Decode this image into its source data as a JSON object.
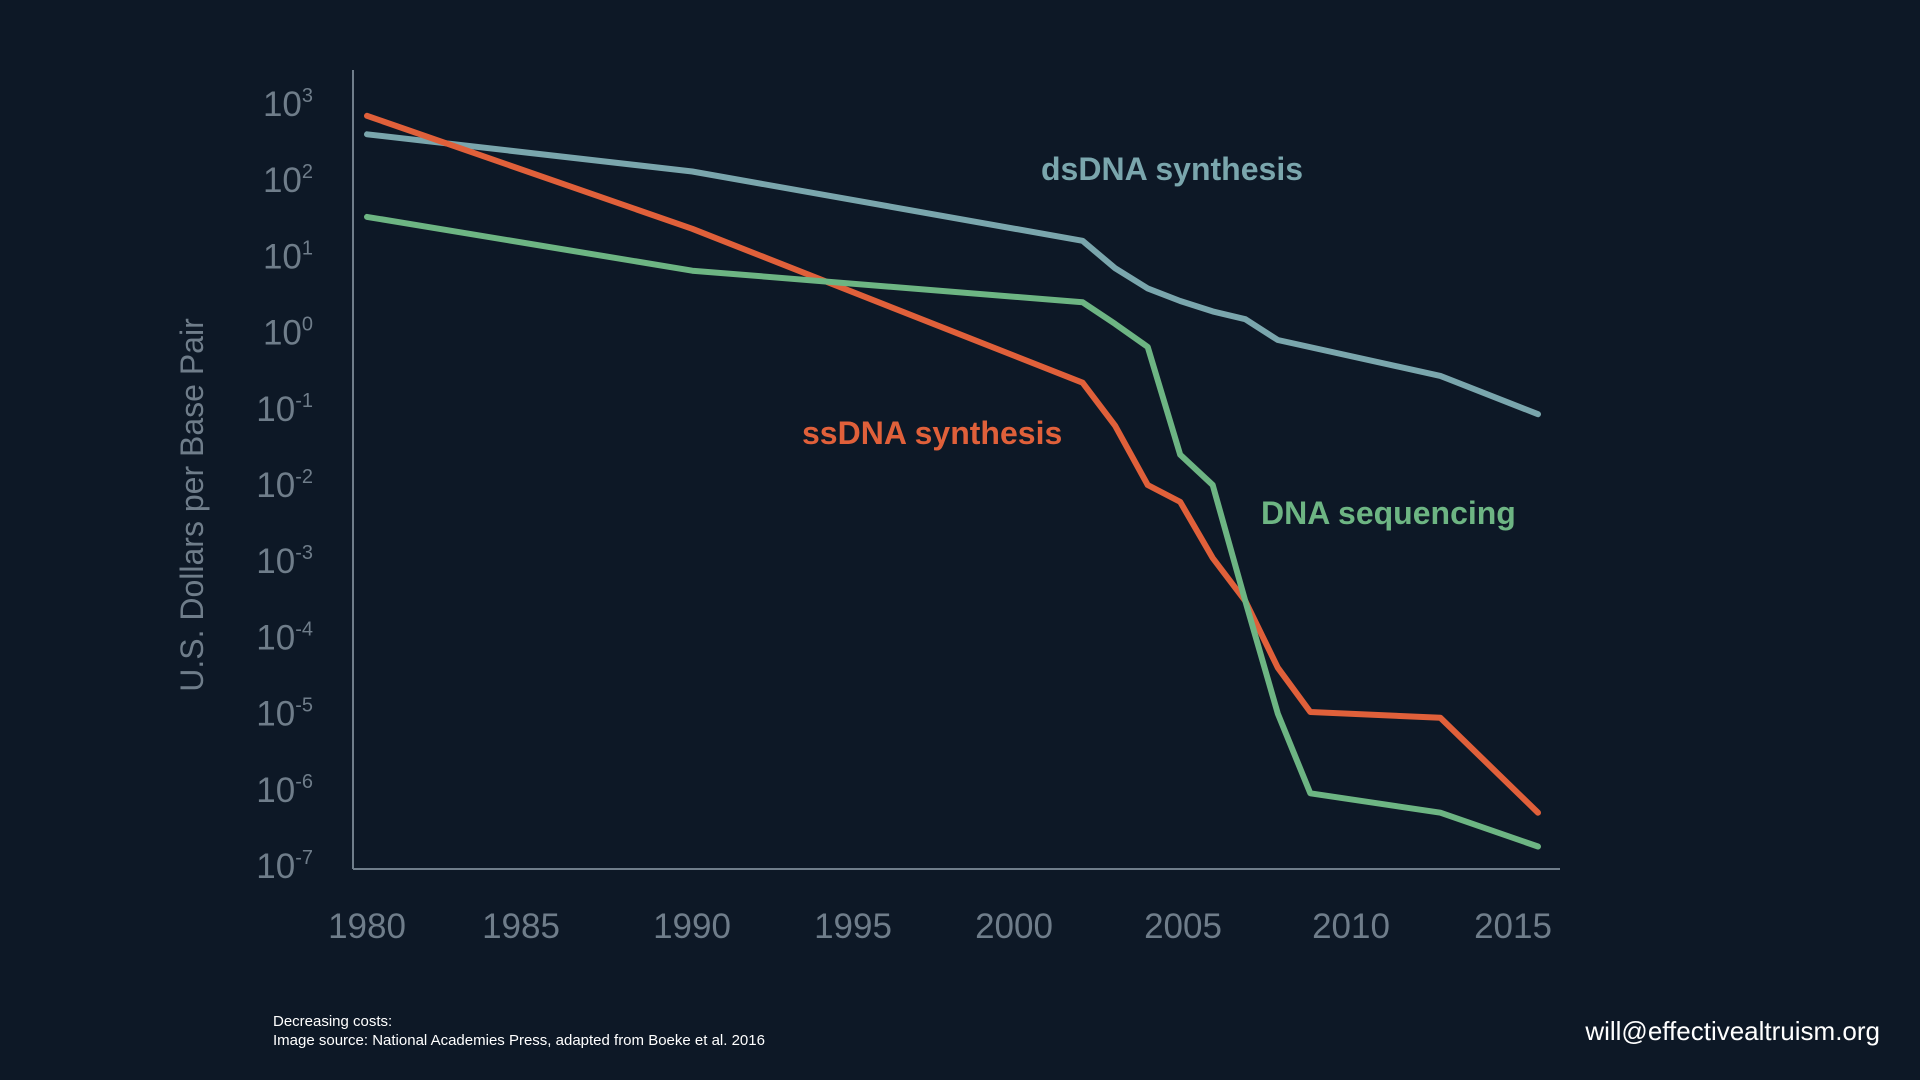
{
  "chart_data": {
    "type": "line",
    "title": "",
    "xlabel": "",
    "ylabel": "U.S. Dollars per Base Pair",
    "yscale": "log",
    "xlim": [
      1980,
      2016
    ],
    "ylim_exponent": [
      -7,
      3
    ],
    "x_ticks": [
      "1980",
      "1985",
      "1990",
      "1995",
      "2000",
      "2005",
      "2010",
      "2015"
    ],
    "y_ticks": [
      {
        "base": "10",
        "exp": "-7",
        "value": 1e-07
      },
      {
        "base": "10",
        "exp": "-6",
        "value": 1e-06
      },
      {
        "base": "10",
        "exp": "-5",
        "value": 1e-05
      },
      {
        "base": "10",
        "exp": "-4",
        "value": 0.0001
      },
      {
        "base": "10",
        "exp": "-3",
        "value": 0.001
      },
      {
        "base": "10",
        "exp": "-2",
        "value": 0.01
      },
      {
        "base": "10",
        "exp": "-1",
        "value": 0.1
      },
      {
        "base": "10",
        "exp": "0",
        "value": 1
      },
      {
        "base": "10",
        "exp": "1",
        "value": 10
      },
      {
        "base": "10",
        "exp": "2",
        "value": 100
      },
      {
        "base": "10",
        "exp": "3",
        "value": 1000
      }
    ],
    "grid": false,
    "legend": "direct labels",
    "series": [
      {
        "name": "dsDNA synthesis",
        "color": "#7aa6ad",
        "points": [
          [
            1980,
            400
          ],
          [
            1990,
            130
          ],
          [
            2002,
            16
          ],
          [
            2003,
            7
          ],
          [
            2004,
            3.8
          ],
          [
            2005,
            2.6
          ],
          [
            2006,
            1.9
          ],
          [
            2007,
            1.5
          ],
          [
            2008,
            0.8
          ],
          [
            2013,
            0.27
          ],
          [
            2016,
            0.085
          ]
        ]
      },
      {
        "name": "ssDNA synthesis",
        "color": "#e0603a",
        "points": [
          [
            1980,
            700
          ],
          [
            1990,
            23
          ],
          [
            2002,
            0.22
          ],
          [
            2003,
            0.06
          ],
          [
            2004,
            0.01
          ],
          [
            2005,
            0.006
          ],
          [
            2006,
            0.0011
          ],
          [
            2007,
            0.0003
          ],
          [
            2008,
            4e-05
          ],
          [
            2009,
            1.05e-05
          ],
          [
            2013,
            8.8e-06
          ],
          [
            2016,
            5e-07
          ]
        ]
      },
      {
        "name": "DNA sequencing",
        "color": "#6db583",
        "points": [
          [
            1980,
            33
          ],
          [
            1990,
            6.5
          ],
          [
            2002,
            2.5
          ],
          [
            2003,
            1.3
          ],
          [
            2004,
            0.65
          ],
          [
            2005,
            0.025
          ],
          [
            2006,
            0.01
          ],
          [
            2007,
            0.0003
          ],
          [
            2008,
            1e-05
          ],
          [
            2009,
            9e-07
          ],
          [
            2013,
            5e-07
          ],
          [
            2016,
            1.8e-07
          ]
        ]
      }
    ]
  },
  "footer": {
    "caption_line1": "Decreasing costs:",
    "caption_line2": "Image source: National Academies Press, adapted from Boeke et al. 2016",
    "email": "will@effectivealtruism.org"
  },
  "colors": {
    "background": "#0d1826",
    "axis": "#6f7d8a"
  }
}
